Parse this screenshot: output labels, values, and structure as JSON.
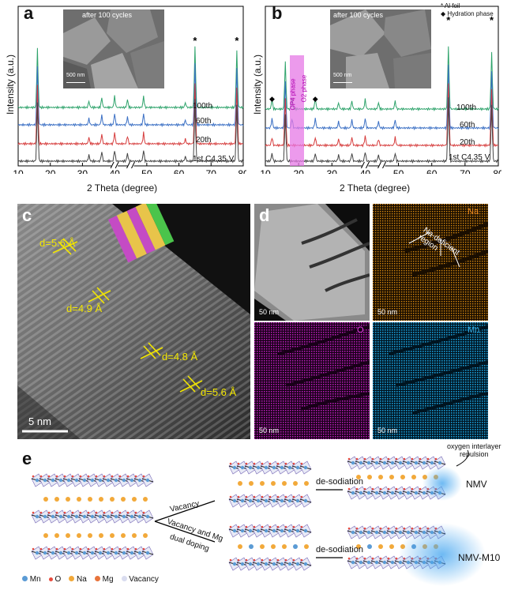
{
  "panels": {
    "a": {
      "label": "a",
      "ylabel": "Intensity (a.u.)",
      "xlabel": "2 Theta (degree)",
      "xticks": [
        "10",
        "20",
        "30",
        "40",
        "50",
        "60",
        "70",
        "80"
      ],
      "inset_caption": "after 100 cycles",
      "inset_scale": "500 nm",
      "star": "*"
    },
    "b": {
      "label": "b",
      "ylabel": "Intensity (a.u.)",
      "xlabel": "2 Theta (degree)",
      "xticks": [
        "10",
        "20",
        "30",
        "40",
        "50",
        "60",
        "70",
        "80"
      ],
      "inset_caption": "after 100 cycles",
      "inset_scale": "500 nm",
      "legend": [
        "Al foil",
        "Hydration phase"
      ],
      "phase_op4": "OP4 phase",
      "phase_o2": "O2 phase",
      "star": "*"
    },
    "c": {
      "label": "c",
      "d1": "d=5.6 Å",
      "d2": "d=4.9 Å",
      "d3": "d=4.8 Å",
      "d4": "d=5.6 Å",
      "scale": "5 nm"
    },
    "d": {
      "label": "d",
      "na": "Na",
      "o": "O",
      "mn": "Mn",
      "region": "Na-deficient region",
      "scale": "50 nm"
    },
    "e": {
      "label": "e",
      "vacancy": "Vacancy",
      "dual1": "Vacancy and Mg",
      "dual2": "dual doping",
      "desod": "de-sodiation",
      "nmv": "NMV",
      "nmvm": "NMV-M10",
      "rep1": "oxygen interlayer",
      "rep2": "repulsion",
      "legend": [
        "Mn",
        "O",
        "Na",
        "Mg",
        "Vacancy"
      ]
    }
  },
  "colors": {
    "c100": "#2ea36b",
    "c60": "#3a6fc4",
    "c20": "#d63c3c",
    "c1": "#444444",
    "mn": "#5b9bd5",
    "o": "#e84a3c",
    "na": "#f2a93a",
    "mg": "#e8743c",
    "vac": "#d9dcef"
  },
  "chart_data": [
    {
      "type": "line",
      "panel": "a",
      "xlabel": "2 Theta (degree)",
      "ylabel": "Intensity (a.u.)",
      "xlim": [
        10,
        80
      ],
      "series": [
        {
          "name": "100th",
          "color": "#2ea36b",
          "peaks": [
            [
              16,
              75
            ],
            [
              32,
              8
            ],
            [
              36,
              12
            ],
            [
              40,
              14
            ],
            [
              44,
              10
            ],
            [
              49,
              14
            ],
            [
              62,
              6
            ],
            [
              65,
              78
            ],
            [
              78,
              72
            ]
          ]
        },
        {
          "name": "60th",
          "color": "#3a6fc4",
          "peaks": [
            [
              16,
              75
            ],
            [
              32,
              8
            ],
            [
              36,
              12
            ],
            [
              40,
              14
            ],
            [
              44,
              10
            ],
            [
              49,
              14
            ],
            [
              62,
              6
            ],
            [
              65,
              78
            ],
            [
              78,
              72
            ]
          ]
        },
        {
          "name": "20th",
          "color": "#d63c3c",
          "peaks": [
            [
              16,
              75
            ],
            [
              32,
              8
            ],
            [
              36,
              12
            ],
            [
              40,
              14
            ],
            [
              44,
              10
            ],
            [
              49,
              14
            ],
            [
              62,
              6
            ],
            [
              65,
              78
            ],
            [
              78,
              72
            ]
          ]
        },
        {
          "name": "1st C4.35 V",
          "color": "#444444",
          "peaks": [
            [
              16,
              75
            ],
            [
              32,
              8
            ],
            [
              36,
              12
            ],
            [
              40,
              14
            ],
            [
              44,
              10
            ],
            [
              49,
              14
            ],
            [
              62,
              6
            ],
            [
              65,
              78
            ],
            [
              78,
              72
            ]
          ]
        }
      ]
    },
    {
      "type": "line",
      "panel": "b",
      "xlabel": "2 Theta (degree)",
      "ylabel": "Intensity (a.u.)",
      "xlim": [
        10,
        80
      ],
      "series": [
        {
          "name": "100th",
          "color": "#2ea36b",
          "peaks": [
            [
              12,
              12
            ],
            [
              16,
              60
            ],
            [
              18,
              14
            ],
            [
              25,
              14
            ],
            [
              32,
              8
            ],
            [
              36,
              10
            ],
            [
              40,
              12
            ],
            [
              44,
              8
            ],
            [
              49,
              10
            ],
            [
              65,
              80
            ],
            [
              78,
              72
            ]
          ]
        },
        {
          "name": "60th",
          "color": "#3a6fc4",
          "peaks": [
            [
              12,
              12
            ],
            [
              16,
              60
            ],
            [
              18,
              12
            ],
            [
              25,
              12
            ],
            [
              32,
              8
            ],
            [
              36,
              10
            ],
            [
              40,
              12
            ],
            [
              44,
              8
            ],
            [
              49,
              10
            ],
            [
              65,
              80
            ],
            [
              78,
              72
            ]
          ]
        },
        {
          "name": "20th",
          "color": "#d63c3c",
          "peaks": [
            [
              12,
              10
            ],
            [
              16,
              60
            ],
            [
              25,
              10
            ],
            [
              32,
              8
            ],
            [
              36,
              10
            ],
            [
              40,
              12
            ],
            [
              44,
              8
            ],
            [
              49,
              10
            ],
            [
              65,
              80
            ],
            [
              78,
              72
            ]
          ]
        },
        {
          "name": "1st C4.35 V",
          "color": "#444444",
          "peaks": [
            [
              12,
              10
            ],
            [
              16,
              60
            ],
            [
              25,
              10
            ],
            [
              32,
              8
            ],
            [
              36,
              10
            ],
            [
              40,
              12
            ],
            [
              44,
              8
            ],
            [
              49,
              10
            ],
            [
              65,
              80
            ],
            [
              78,
              72
            ]
          ]
        }
      ]
    }
  ]
}
